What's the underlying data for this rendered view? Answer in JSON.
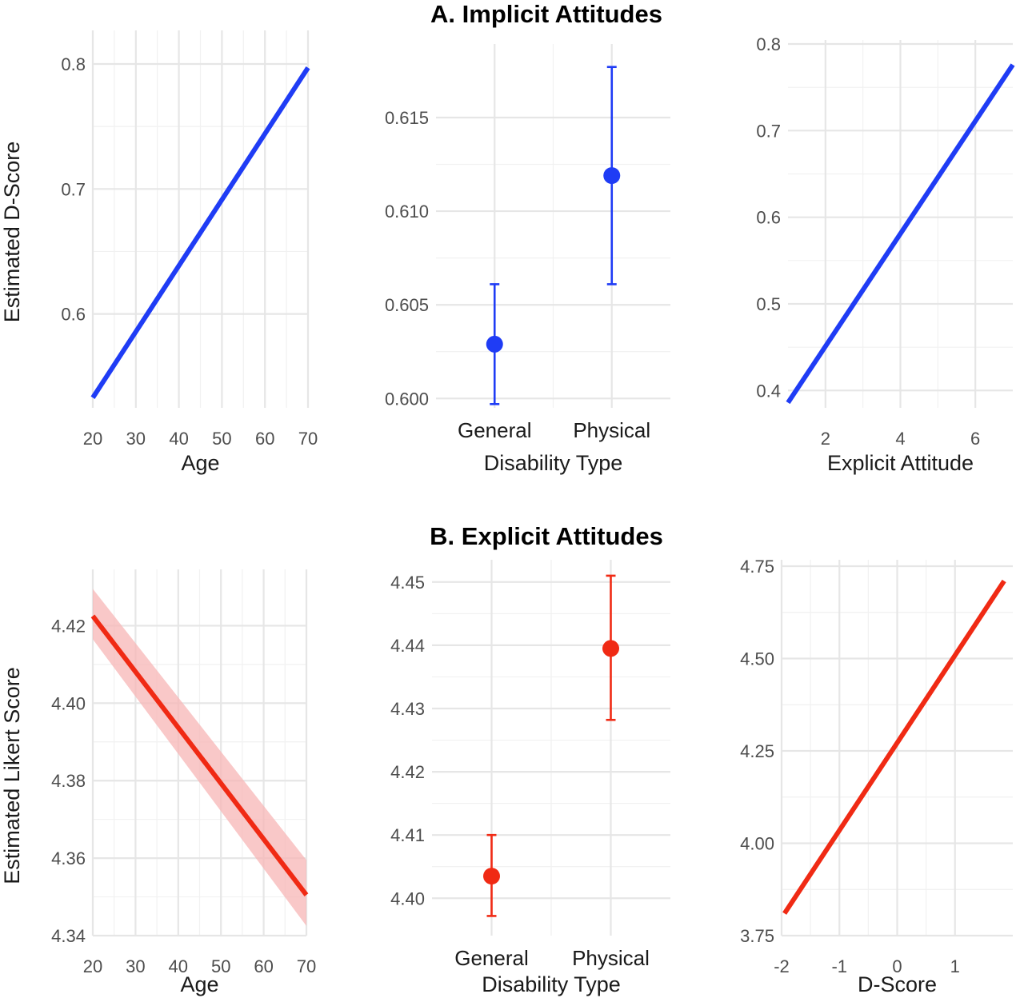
{
  "colors": {
    "implicit": "#1f3cf5",
    "explicit": "#f02a14",
    "explicit_ribbon": "#f7b5b5",
    "grid": "#e6e6e6"
  },
  "titles": {
    "A": "A. Implicit Attitudes",
    "B": "B. Explicit Attitudes"
  },
  "chart_data": [
    {
      "id": "A1",
      "row": "A",
      "type": "line",
      "xlabel": "Age",
      "ylabel": "Estimated D-Score",
      "xlim": [
        20,
        70
      ],
      "ylim": [
        0.53,
        0.8
      ],
      "xticks": [
        20,
        30,
        40,
        50,
        60,
        70
      ],
      "xtick_labels": [
        "20",
        "30",
        "40",
        "50",
        "60",
        "70"
      ],
      "yticks": [
        0.6,
        0.7,
        0.8
      ],
      "ytick_labels": [
        "0.6",
        "0.7",
        "0.8"
      ],
      "series": [
        {
          "x": [
            20,
            70
          ],
          "y": [
            0.533,
            0.797
          ]
        }
      ],
      "grid": true,
      "color": "implicit"
    },
    {
      "id": "A2",
      "row": "A",
      "type": "errorbar",
      "xlabel": "Disability Type",
      "ylabel": "",
      "categories": [
        "General",
        "Physical"
      ],
      "ylim": [
        0.5995,
        0.6185
      ],
      "yticks": [
        0.6,
        0.605,
        0.61,
        0.615
      ],
      "ytick_labels": [
        "0.600",
        "0.605",
        "0.610",
        "0.615"
      ],
      "points": [
        {
          "category": "General",
          "y": 0.6029,
          "lower": 0.5997,
          "upper": 0.6061
        },
        {
          "category": "Physical",
          "y": 0.6119,
          "lower": 0.6061,
          "upper": 0.6177
        }
      ],
      "grid": true,
      "color": "implicit"
    },
    {
      "id": "A3",
      "row": "A",
      "type": "line",
      "xlabel": "Explicit Attitude",
      "ylabel": "",
      "xlim": [
        1,
        7
      ],
      "ylim": [
        0.38,
        0.8
      ],
      "xticks": [
        2,
        4,
        6
      ],
      "xtick_labels": [
        "2",
        "4",
        "6"
      ],
      "yticks": [
        0.4,
        0.5,
        0.6,
        0.7,
        0.8
      ],
      "ytick_labels": [
        "0.4",
        "0.5",
        "0.6",
        "0.7",
        "0.8"
      ],
      "series": [
        {
          "x": [
            1,
            7
          ],
          "y": [
            0.386,
            0.776
          ]
        }
      ],
      "grid": true,
      "color": "implicit"
    },
    {
      "id": "B1",
      "row": "B",
      "type": "line",
      "xlabel": "Age",
      "ylabel": "Estimated Likert Score",
      "xlim": [
        20,
        70
      ],
      "ylim": [
        4.34,
        4.43
      ],
      "xticks": [
        20,
        30,
        40,
        50,
        60,
        70
      ],
      "xtick_labels": [
        "20",
        "30",
        "40",
        "50",
        "60",
        "70"
      ],
      "yticks": [
        4.34,
        4.36,
        4.38,
        4.4,
        4.42
      ],
      "ytick_labels": [
        "4.34",
        "4.36",
        "4.38",
        "4.40",
        "4.42"
      ],
      "series": [
        {
          "x": [
            20,
            70
          ],
          "y": [
            4.4225,
            4.3505
          ],
          "band_low": [
            4.4165,
            4.3425
          ],
          "band_high": [
            4.4295,
            4.3595
          ]
        }
      ],
      "grid": true,
      "color": "explicit"
    },
    {
      "id": "B2",
      "row": "B",
      "type": "errorbar",
      "xlabel": "Disability Type",
      "ylabel": "",
      "categories": [
        "General",
        "Physical"
      ],
      "ylim": [
        4.397,
        4.452
      ],
      "yticks": [
        4.4,
        4.41,
        4.42,
        4.43,
        4.44,
        4.45
      ],
      "ytick_labels": [
        "4.40",
        "4.41",
        "4.42",
        "4.43",
        "4.44",
        "4.45"
      ],
      "points": [
        {
          "category": "General",
          "y": 4.4035,
          "lower": 4.3972,
          "upper": 4.41
        },
        {
          "category": "Physical",
          "y": 4.4395,
          "lower": 4.4282,
          "upper": 4.451
        }
      ],
      "grid": true,
      "color": "explicit"
    },
    {
      "id": "B3",
      "row": "B",
      "type": "line",
      "xlabel": "D-Score",
      "ylabel": "",
      "xlim": [
        -2,
        2
      ],
      "ylim": [
        3.75,
        4.75
      ],
      "xticks": [
        -2,
        -1,
        0,
        1
      ],
      "xtick_labels": [
        "-2",
        "-1",
        "0",
        "1"
      ],
      "yticks": [
        3.75,
        4.0,
        4.25,
        4.5,
        4.75
      ],
      "ytick_labels": [
        "3.75",
        "4.00",
        "4.25",
        "4.50",
        "4.75"
      ],
      "series": [
        {
          "x": [
            -1.95,
            1.85
          ],
          "y": [
            3.81,
            4.71
          ]
        }
      ],
      "grid": true,
      "color": "explicit"
    }
  ]
}
